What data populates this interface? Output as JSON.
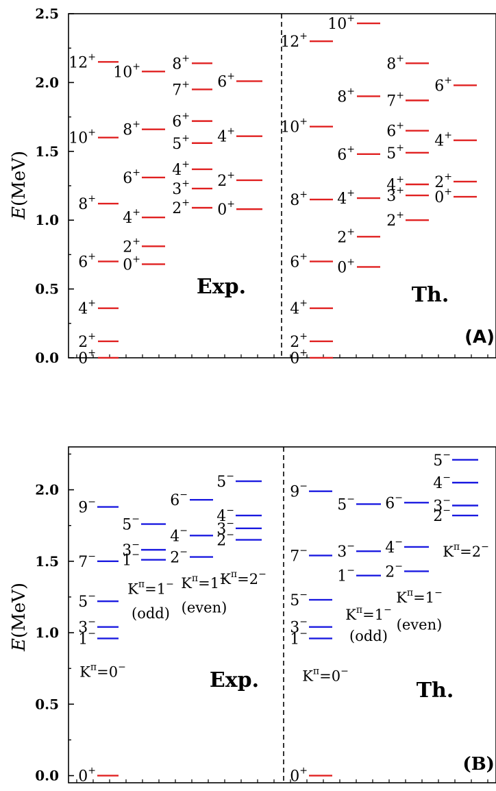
{
  "chart_data": [
    {
      "type": "level-scheme",
      "panel_label": "(A)",
      "ylabel": "E(MeV)",
      "ylim": [
        0,
        2.5
      ],
      "yticks": [
        "0.0",
        "0.5",
        "1.0",
        "1.5",
        "2.0",
        "2.5"
      ],
      "tick_values": [
        0,
        0.5,
        1.0,
        1.5,
        2.0,
        2.5
      ],
      "level_color": "#e02020",
      "sections": [
        {
          "label": "Exp.",
          "columns": [
            {
              "levels": [
                {
                  "j": "0",
                  "p": "+",
                  "e": 0.0
                },
                {
                  "j": "2",
                  "p": "+",
                  "e": 0.12
                },
                {
                  "j": "4",
                  "p": "+",
                  "e": 0.36
                },
                {
                  "j": "6",
                  "p": "+",
                  "e": 0.7
                },
                {
                  "j": "8",
                  "p": "+",
                  "e": 1.12
                },
                {
                  "j": "10",
                  "p": "+",
                  "e": 1.6
                },
                {
                  "j": "12",
                  "p": "+",
                  "e": 2.15
                }
              ]
            },
            {
              "levels": [
                {
                  "j": "0",
                  "p": "+",
                  "e": 0.68
                },
                {
                  "j": "2",
                  "p": "+",
                  "e": 0.81
                },
                {
                  "j": "4",
                  "p": "+",
                  "e": 1.02
                },
                {
                  "j": "6",
                  "p": "+",
                  "e": 1.31
                },
                {
                  "j": "8",
                  "p": "+",
                  "e": 1.66
                },
                {
                  "j": "10",
                  "p": "+",
                  "e": 2.08
                }
              ]
            },
            {
              "levels": [
                {
                  "j": "2",
                  "p": "+",
                  "e": 1.09
                },
                {
                  "j": "3",
                  "p": "+",
                  "e": 1.23
                },
                {
                  "j": "4",
                  "p": "+",
                  "e": 1.37
                },
                {
                  "j": "5",
                  "p": "+",
                  "e": 1.56
                },
                {
                  "j": "6",
                  "p": "+",
                  "e": 1.72
                },
                {
                  "j": "7",
                  "p": "+",
                  "e": 1.95
                },
                {
                  "j": "8",
                  "p": "+",
                  "e": 2.14
                }
              ]
            },
            {
              "levels": [
                {
                  "j": "0",
                  "p": "+",
                  "e": 1.08
                },
                {
                  "j": "2",
                  "p": "+",
                  "e": 1.29
                },
                {
                  "j": "4",
                  "p": "+",
                  "e": 1.61
                },
                {
                  "j": "6",
                  "p": "+",
                  "e": 2.01
                }
              ]
            }
          ]
        },
        {
          "label": "Th.",
          "columns": [
            {
              "levels": [
                {
                  "j": "0",
                  "p": "+",
                  "e": 0.0
                },
                {
                  "j": "2",
                  "p": "+",
                  "e": 0.12
                },
                {
                  "j": "4",
                  "p": "+",
                  "e": 0.36
                },
                {
                  "j": "6",
                  "p": "+",
                  "e": 0.7
                },
                {
                  "j": "8",
                  "p": "+",
                  "e": 1.15
                },
                {
                  "j": "10",
                  "p": "+",
                  "e": 1.68
                },
                {
                  "j": "12",
                  "p": "+",
                  "e": 2.3
                }
              ]
            },
            {
              "levels": [
                {
                  "j": "0",
                  "p": "+",
                  "e": 0.66
                },
                {
                  "j": "2",
                  "p": "+",
                  "e": 0.88
                },
                {
                  "j": "4",
                  "p": "+",
                  "e": 1.16
                },
                {
                  "j": "6",
                  "p": "+",
                  "e": 1.48
                },
                {
                  "j": "8",
                  "p": "+",
                  "e": 1.9
                },
                {
                  "j": "10",
                  "p": "+",
                  "e": 2.43
                }
              ]
            },
            {
              "levels": [
                {
                  "j": "2",
                  "p": "+",
                  "e": 1.0
                },
                {
                  "j": "3",
                  "p": "+",
                  "e": 1.18
                },
                {
                  "j": "4",
                  "p": "+",
                  "e": 1.26
                },
                {
                  "j": "5",
                  "p": "+",
                  "e": 1.49
                },
                {
                  "j": "6",
                  "p": "+",
                  "e": 1.65
                },
                {
                  "j": "7",
                  "p": "+",
                  "e": 1.87
                },
                {
                  "j": "8",
                  "p": "+",
                  "e": 2.14
                }
              ]
            },
            {
              "levels": [
                {
                  "j": "0",
                  "p": "+",
                  "e": 1.17
                },
                {
                  "j": "2",
                  "p": "+",
                  "e": 1.28
                },
                {
                  "j": "4",
                  "p": "+",
                  "e": 1.58
                },
                {
                  "j": "6",
                  "p": "+",
                  "e": 1.98
                }
              ]
            }
          ]
        }
      ]
    },
    {
      "type": "level-scheme",
      "panel_label": "(B)",
      "ylabel": "E(MeV)",
      "ylim": [
        -0.05,
        2.3
      ],
      "yticks": [
        "0.0",
        "0.5",
        "1.0",
        "1.5",
        "2.0"
      ],
      "tick_values": [
        0,
        0.5,
        1.0,
        1.5,
        2.0
      ],
      "level_color": "#1a1ae0",
      "ground_color": "#e02020",
      "sections": [
        {
          "label": "Exp.",
          "ground": {
            "j": "0",
            "p": "+",
            "e": 0.0
          },
          "columns": [
            {
              "band": [
                "K",
                "π",
                "=0",
                "−"
              ],
              "band_e": 0.73,
              "levels": [
                {
                  "j": "1",
                  "p": "−",
                  "e": 0.96
                },
                {
                  "j": "3",
                  "p": "−",
                  "e": 1.04
                },
                {
                  "j": "5",
                  "p": "−",
                  "e": 1.22
                },
                {
                  "j": "7",
                  "p": "−",
                  "e": 1.5
                },
                {
                  "j": "9",
                  "p": "−",
                  "e": 1.88
                }
              ]
            },
            {
              "band": [
                "K",
                "π",
                "=1",
                "−"
              ],
              "band_e": 1.31,
              "band_sub": "(odd)",
              "band_sub_e": 1.14,
              "levels": [
                {
                  "j": "1",
                  "p": "−",
                  "e": 1.51
                },
                {
                  "j": "3",
                  "p": "−",
                  "e": 1.58
                },
                {
                  "j": "5",
                  "p": "−",
                  "e": 1.76
                }
              ]
            },
            {
              "band": [
                "K",
                "π",
                "=1",
                "−"
              ],
              "band_e": 1.35,
              "band_sub": "(even)",
              "band_sub_e": 1.18,
              "levels": [
                {
                  "j": "2",
                  "p": "−",
                  "e": 1.53
                },
                {
                  "j": "4",
                  "p": "−",
                  "e": 1.68
                },
                {
                  "j": "6",
                  "p": "−",
                  "e": 1.93
                }
              ]
            },
            {
              "band": [
                "K",
                "π",
                "=2",
                "−"
              ],
              "band_e": 1.38,
              "levels": [
                {
                  "j": "2",
                  "p": "−",
                  "e": 1.65
                },
                {
                  "j": "3",
                  "p": "−",
                  "e": 1.73
                },
                {
                  "j": "4",
                  "p": "−",
                  "e": 1.82
                },
                {
                  "j": "5",
                  "p": "−",
                  "e": 2.06
                }
              ]
            }
          ]
        },
        {
          "label": "Th.",
          "ground": {
            "j": "0",
            "p": "+",
            "e": 0.0
          },
          "columns": [
            {
              "band": [
                "K",
                "π",
                "=0",
                "−"
              ],
              "band_e": 0.7,
              "levels": [
                {
                  "j": "1",
                  "p": "−",
                  "e": 0.96
                },
                {
                  "j": "3",
                  "p": "−",
                  "e": 1.04
                },
                {
                  "j": "5",
                  "p": "−",
                  "e": 1.23
                },
                {
                  "j": "7",
                  "p": "−",
                  "e": 1.54
                },
                {
                  "j": "9",
                  "p": "−",
                  "e": 1.99
                }
              ]
            },
            {
              "band": [
                "K",
                "π",
                "=1",
                "−"
              ],
              "band_e": 1.13,
              "band_sub": "(odd)",
              "band_sub_e": 0.98,
              "levels": [
                {
                  "j": "1",
                  "p": "−",
                  "e": 1.4
                },
                {
                  "j": "3",
                  "p": "−",
                  "e": 1.57
                },
                {
                  "j": "5",
                  "p": "−",
                  "e": 1.9
                }
              ]
            },
            {
              "band": [
                "K",
                "π",
                "=1",
                "−"
              ],
              "band_e": 1.25,
              "band_sub": "(even)",
              "band_sub_e": 1.06,
              "levels": [
                {
                  "j": "2",
                  "p": "−",
                  "e": 1.43
                },
                {
                  "j": "4",
                  "p": "−",
                  "e": 1.6
                },
                {
                  "j": "6",
                  "p": "−",
                  "e": 1.91
                }
              ]
            },
            {
              "band": [
                "K",
                "π",
                "=2",
                "−"
              ],
              "band_e": 1.57,
              "levels": [
                {
                  "j": "2",
                  "p": "−",
                  "e": 1.82
                },
                {
                  "j": "3",
                  "p": "−",
                  "e": 1.89
                },
                {
                  "j": "4",
                  "p": "−",
                  "e": 2.05
                },
                {
                  "j": "5",
                  "p": "−",
                  "e": 2.21
                }
              ]
            }
          ]
        }
      ]
    }
  ]
}
